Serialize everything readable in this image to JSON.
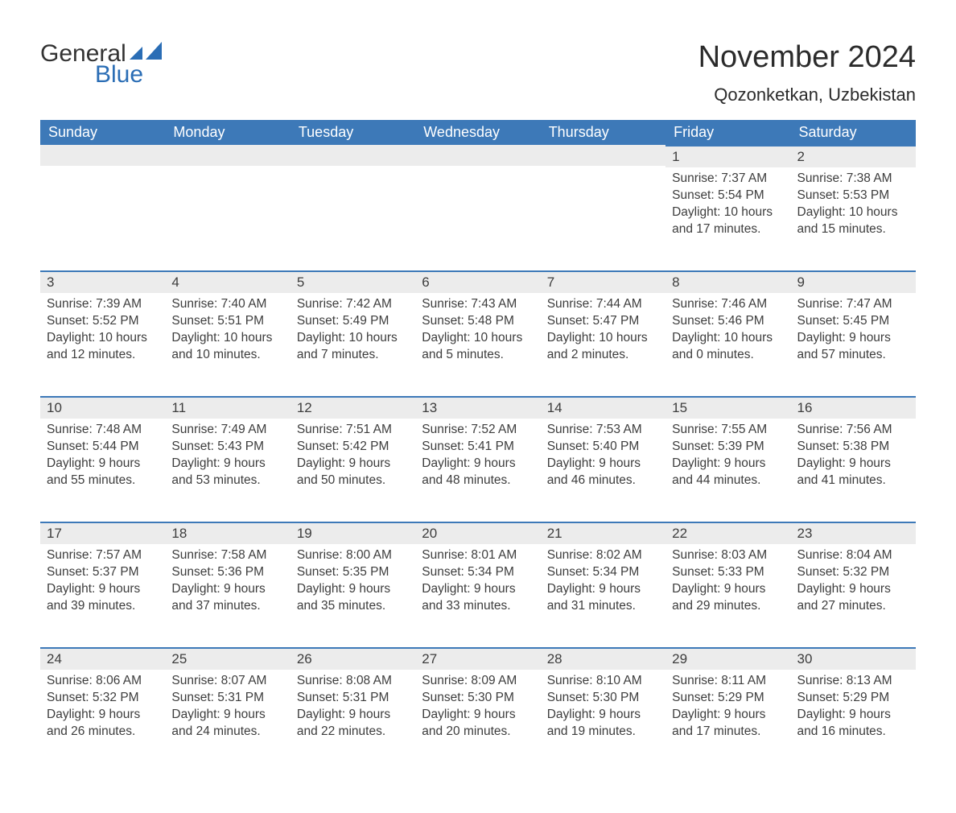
{
  "logo": {
    "line1": "General",
    "line2": "Blue",
    "icon_color": "#2a6db5"
  },
  "header": {
    "title": "November 2024",
    "location": "Qozonketkan, Uzbekistan"
  },
  "colors": {
    "header_bg": "#3d79b8",
    "header_text": "#ffffff",
    "daynum_bg": "#ececec",
    "daynum_border": "#3d79b8",
    "body_text": "#3d3d3d",
    "background": "#ffffff",
    "logo_accent": "#2a6db5"
  },
  "typography": {
    "title_fontsize": 38,
    "location_fontsize": 22,
    "dayheader_fontsize": 18,
    "daynum_fontsize": 17,
    "body_fontsize": 15.5,
    "font_family": "Arial"
  },
  "calendar": {
    "day_labels": [
      "Sunday",
      "Monday",
      "Tuesday",
      "Wednesday",
      "Thursday",
      "Friday",
      "Saturday"
    ],
    "weeks": [
      [
        null,
        null,
        null,
        null,
        null,
        {
          "n": "1",
          "sunrise": "Sunrise: 7:37 AM",
          "sunset": "Sunset: 5:54 PM",
          "daylight": "Daylight: 10 hours and 17 minutes."
        },
        {
          "n": "2",
          "sunrise": "Sunrise: 7:38 AM",
          "sunset": "Sunset: 5:53 PM",
          "daylight": "Daylight: 10 hours and 15 minutes."
        }
      ],
      [
        {
          "n": "3",
          "sunrise": "Sunrise: 7:39 AM",
          "sunset": "Sunset: 5:52 PM",
          "daylight": "Daylight: 10 hours and 12 minutes."
        },
        {
          "n": "4",
          "sunrise": "Sunrise: 7:40 AM",
          "sunset": "Sunset: 5:51 PM",
          "daylight": "Daylight: 10 hours and 10 minutes."
        },
        {
          "n": "5",
          "sunrise": "Sunrise: 7:42 AM",
          "sunset": "Sunset: 5:49 PM",
          "daylight": "Daylight: 10 hours and 7 minutes."
        },
        {
          "n": "6",
          "sunrise": "Sunrise: 7:43 AM",
          "sunset": "Sunset: 5:48 PM",
          "daylight": "Daylight: 10 hours and 5 minutes."
        },
        {
          "n": "7",
          "sunrise": "Sunrise: 7:44 AM",
          "sunset": "Sunset: 5:47 PM",
          "daylight": "Daylight: 10 hours and 2 minutes."
        },
        {
          "n": "8",
          "sunrise": "Sunrise: 7:46 AM",
          "sunset": "Sunset: 5:46 PM",
          "daylight": "Daylight: 10 hours and 0 minutes."
        },
        {
          "n": "9",
          "sunrise": "Sunrise: 7:47 AM",
          "sunset": "Sunset: 5:45 PM",
          "daylight": "Daylight: 9 hours and 57 minutes."
        }
      ],
      [
        {
          "n": "10",
          "sunrise": "Sunrise: 7:48 AM",
          "sunset": "Sunset: 5:44 PM",
          "daylight": "Daylight: 9 hours and 55 minutes."
        },
        {
          "n": "11",
          "sunrise": "Sunrise: 7:49 AM",
          "sunset": "Sunset: 5:43 PM",
          "daylight": "Daylight: 9 hours and 53 minutes."
        },
        {
          "n": "12",
          "sunrise": "Sunrise: 7:51 AM",
          "sunset": "Sunset: 5:42 PM",
          "daylight": "Daylight: 9 hours and 50 minutes."
        },
        {
          "n": "13",
          "sunrise": "Sunrise: 7:52 AM",
          "sunset": "Sunset: 5:41 PM",
          "daylight": "Daylight: 9 hours and 48 minutes."
        },
        {
          "n": "14",
          "sunrise": "Sunrise: 7:53 AM",
          "sunset": "Sunset: 5:40 PM",
          "daylight": "Daylight: 9 hours and 46 minutes."
        },
        {
          "n": "15",
          "sunrise": "Sunrise: 7:55 AM",
          "sunset": "Sunset: 5:39 PM",
          "daylight": "Daylight: 9 hours and 44 minutes."
        },
        {
          "n": "16",
          "sunrise": "Sunrise: 7:56 AM",
          "sunset": "Sunset: 5:38 PM",
          "daylight": "Daylight: 9 hours and 41 minutes."
        }
      ],
      [
        {
          "n": "17",
          "sunrise": "Sunrise: 7:57 AM",
          "sunset": "Sunset: 5:37 PM",
          "daylight": "Daylight: 9 hours and 39 minutes."
        },
        {
          "n": "18",
          "sunrise": "Sunrise: 7:58 AM",
          "sunset": "Sunset: 5:36 PM",
          "daylight": "Daylight: 9 hours and 37 minutes."
        },
        {
          "n": "19",
          "sunrise": "Sunrise: 8:00 AM",
          "sunset": "Sunset: 5:35 PM",
          "daylight": "Daylight: 9 hours and 35 minutes."
        },
        {
          "n": "20",
          "sunrise": "Sunrise: 8:01 AM",
          "sunset": "Sunset: 5:34 PM",
          "daylight": "Daylight: 9 hours and 33 minutes."
        },
        {
          "n": "21",
          "sunrise": "Sunrise: 8:02 AM",
          "sunset": "Sunset: 5:34 PM",
          "daylight": "Daylight: 9 hours and 31 minutes."
        },
        {
          "n": "22",
          "sunrise": "Sunrise: 8:03 AM",
          "sunset": "Sunset: 5:33 PM",
          "daylight": "Daylight: 9 hours and 29 minutes."
        },
        {
          "n": "23",
          "sunrise": "Sunrise: 8:04 AM",
          "sunset": "Sunset: 5:32 PM",
          "daylight": "Daylight: 9 hours and 27 minutes."
        }
      ],
      [
        {
          "n": "24",
          "sunrise": "Sunrise: 8:06 AM",
          "sunset": "Sunset: 5:32 PM",
          "daylight": "Daylight: 9 hours and 26 minutes."
        },
        {
          "n": "25",
          "sunrise": "Sunrise: 8:07 AM",
          "sunset": "Sunset: 5:31 PM",
          "daylight": "Daylight: 9 hours and 24 minutes."
        },
        {
          "n": "26",
          "sunrise": "Sunrise: 8:08 AM",
          "sunset": "Sunset: 5:31 PM",
          "daylight": "Daylight: 9 hours and 22 minutes."
        },
        {
          "n": "27",
          "sunrise": "Sunrise: 8:09 AM",
          "sunset": "Sunset: 5:30 PM",
          "daylight": "Daylight: 9 hours and 20 minutes."
        },
        {
          "n": "28",
          "sunrise": "Sunrise: 8:10 AM",
          "sunset": "Sunset: 5:30 PM",
          "daylight": "Daylight: 9 hours and 19 minutes."
        },
        {
          "n": "29",
          "sunrise": "Sunrise: 8:11 AM",
          "sunset": "Sunset: 5:29 PM",
          "daylight": "Daylight: 9 hours and 17 minutes."
        },
        {
          "n": "30",
          "sunrise": "Sunrise: 8:13 AM",
          "sunset": "Sunset: 5:29 PM",
          "daylight": "Daylight: 9 hours and 16 minutes."
        }
      ]
    ]
  }
}
